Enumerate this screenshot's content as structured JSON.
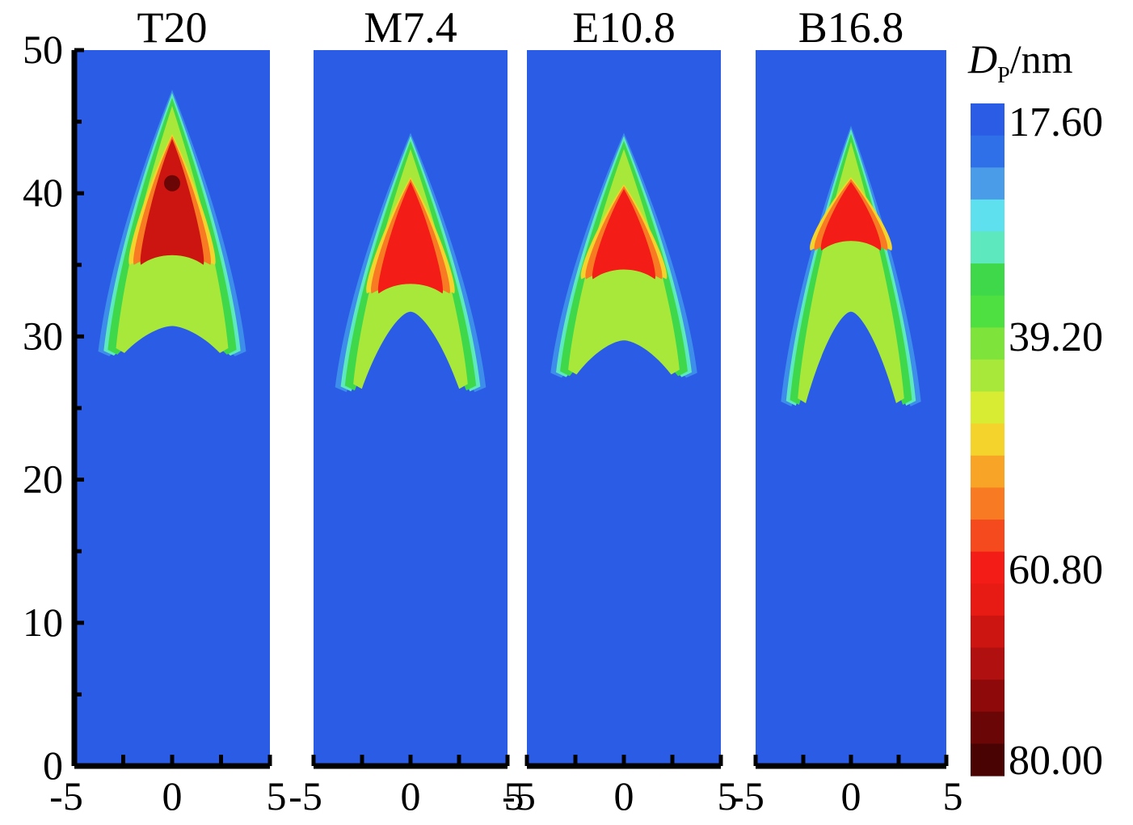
{
  "chart_data": {
    "type": "heatmap",
    "panels": [
      {
        "title": "T20",
        "plume": {
          "tip_y": 47,
          "base_y": 29,
          "half_width": 3.5,
          "inner_base_y": 31,
          "core_top_y": 44,
          "core_bottom_y": 35,
          "core_peak_dp": 78
        }
      },
      {
        "title": "M7.4",
        "plume": {
          "tip_y": 44,
          "base_y": 26.5,
          "half_width": 3.6,
          "inner_base_y": 32,
          "core_top_y": 41,
          "core_bottom_y": 33,
          "core_peak_dp": 62
        }
      },
      {
        "title": "E10.8",
        "plume": {
          "tip_y": 44,
          "base_y": 27.5,
          "half_width": 3.5,
          "inner_base_y": 30,
          "core_top_y": 40.5,
          "core_bottom_y": 34,
          "core_peak_dp": 60
        }
      },
      {
        "title": "B16.8",
        "plume": {
          "tip_y": 44.5,
          "base_y": 25.5,
          "half_width": 3.4,
          "inner_base_y": 32,
          "core_top_y": 41,
          "core_bottom_y": 36,
          "core_peak_dp": 62
        }
      }
    ],
    "xlim": [
      -5,
      5
    ],
    "ylim": [
      0,
      50
    ],
    "x_ticks": [
      "-5",
      "0",
      "5"
    ],
    "y_ticks": [
      "0",
      "10",
      "20",
      "30",
      "40",
      "50"
    ],
    "y_tick_values": [
      0,
      10,
      20,
      30,
      40,
      50
    ],
    "colorbar": {
      "label_main": "D",
      "label_sub": "P",
      "label_unit": "/nm",
      "min": 17.6,
      "max": 80.0,
      "tick_labels": [
        "17.60",
        "39.20",
        "60.80",
        "80.00"
      ],
      "tick_values": [
        17.6,
        39.2,
        60.8,
        80.0
      ],
      "colors": [
        "#2b5ce6",
        "#2f6fe8",
        "#4a9be8",
        "#5ee0ee",
        "#5ee8bd",
        "#3ed84a",
        "#4ee040",
        "#7ee43c",
        "#a8e83a",
        "#d8ec34",
        "#f4d42c",
        "#f8a426",
        "#f87a22",
        "#f44a1e",
        "#f41c16",
        "#e81a14",
        "#cc1410",
        "#b01010",
        "#8e0a0a",
        "#6a0606",
        "#4a0303"
      ]
    },
    "background_color": "#2b5ce6"
  }
}
